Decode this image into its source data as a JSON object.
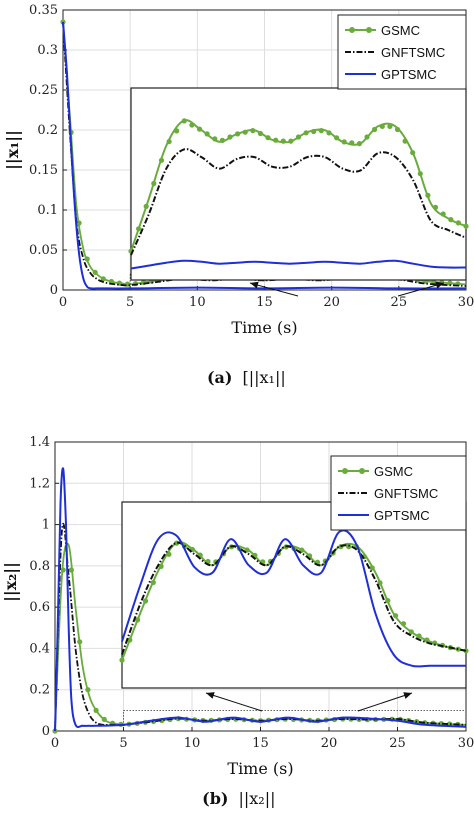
{
  "chart_data": [
    {
      "type": "line",
      "panel": "a",
      "caption_label": "(a)",
      "caption_text": "[||x₁||",
      "xlabel": "Time (s)",
      "ylabel": "||x₁||",
      "xlim": [
        0,
        30
      ],
      "ylim": [
        0,
        0.35
      ],
      "xticks": [
        0,
        5,
        10,
        15,
        20,
        25,
        30
      ],
      "yticks": [
        0,
        0.05,
        0.1,
        0.15,
        0.2,
        0.25,
        0.3,
        0.35
      ],
      "grid": true,
      "legend_position": "top-right",
      "series": [
        {
          "name": "GSMC",
          "color": "#6aac3c",
          "style": "solid-marker",
          "x": [
            0,
            0.5,
            1,
            1.5,
            2,
            2.5,
            3,
            3.5,
            4,
            4.5,
            5,
            7,
            9,
            11,
            13,
            15,
            17,
            19,
            21,
            23,
            25,
            27,
            30
          ],
          "y": [
            0.335,
            0.22,
            0.105,
            0.052,
            0.03,
            0.02,
            0.014,
            0.011,
            0.009,
            0.008,
            0.007,
            0.012,
            0.017,
            0.015,
            0.017,
            0.014,
            0.017,
            0.014,
            0.017,
            0.016,
            0.016,
            0.011,
            0.007
          ]
        },
        {
          "name": "GNFTSMC",
          "color": "#111111",
          "style": "dash-dot",
          "x": [
            0,
            0.5,
            1,
            1.5,
            2,
            2.5,
            3,
            3.5,
            4,
            4.5,
            5,
            7,
            9,
            11,
            13,
            15,
            17,
            19,
            21,
            23,
            25,
            27,
            30
          ],
          "y": [
            0.335,
            0.2,
            0.085,
            0.04,
            0.022,
            0.014,
            0.01,
            0.008,
            0.007,
            0.006,
            0.006,
            0.01,
            0.014,
            0.012,
            0.014,
            0.012,
            0.014,
            0.012,
            0.014,
            0.013,
            0.013,
            0.008,
            0.005
          ]
        },
        {
          "name": "GPTSMC",
          "color": "#1f2fd6",
          "style": "solid",
          "x": [
            0,
            0.3,
            0.6,
            0.9,
            1.2,
            1.5,
            1.8,
            2.1,
            2.5,
            3,
            5,
            10,
            15,
            20,
            25,
            30
          ],
          "y": [
            0.335,
            0.27,
            0.18,
            0.1,
            0.045,
            0.015,
            0.004,
            0.002,
            0.002,
            0.002,
            0.002,
            0.003,
            0.002,
            0.003,
            0.002,
            0.002
          ]
        }
      ],
      "inset": {
        "source_xlim": [
          5,
          30
        ],
        "source_ylim": [
          0,
          0.02
        ],
        "series": [
          {
            "name": "GSMC",
            "y": [
              0.15,
              0.42,
              0.7,
              0.83,
              0.78,
              0.72,
              0.76,
              0.78,
              0.73,
              0.72,
              0.77,
              0.78,
              0.72,
              0.71,
              0.8,
              0.8,
              0.66,
              0.4,
              0.32,
              0.28
            ]
          },
          {
            "name": "GNFTSMC",
            "y": [
              0.13,
              0.34,
              0.58,
              0.68,
              0.64,
              0.58,
              0.63,
              0.64,
              0.59,
              0.59,
              0.64,
              0.64,
              0.58,
              0.57,
              0.66,
              0.64,
              0.52,
              0.31,
              0.26,
              0.22
            ]
          },
          {
            "name": "GPTSMC",
            "y": [
              0.06,
              0.075,
              0.09,
              0.1,
              0.095,
              0.085,
              0.09,
              0.095,
              0.09,
              0.085,
              0.09,
              0.095,
              0.09,
              0.085,
              0.095,
              0.1,
              0.085,
              0.07,
              0.065,
              0.065
            ]
          }
        ]
      }
    },
    {
      "type": "line",
      "panel": "b",
      "caption_label": "(b)",
      "caption_text": "||x₂||",
      "xlabel": "Time (s)",
      "ylabel": "||x₂||",
      "xlim": [
        0,
        30
      ],
      "ylim": [
        0,
        1.4
      ],
      "xticks": [
        0,
        5,
        10,
        15,
        20,
        25,
        30
      ],
      "yticks": [
        0,
        0.2,
        0.4,
        0.6,
        0.8,
        1,
        1.2,
        1.4
      ],
      "grid": true,
      "legend_position": "top-right",
      "series": [
        {
          "name": "GSMC",
          "color": "#6aac3c",
          "style": "solid-marker",
          "x": [
            0,
            0.5,
            1,
            1.5,
            2,
            2.5,
            3,
            3.5,
            4,
            4.5,
            5,
            7,
            9,
            11,
            13,
            15,
            17,
            19,
            21,
            23,
            25,
            27,
            30
          ],
          "y": [
            0.0,
            0.75,
            0.9,
            0.6,
            0.32,
            0.17,
            0.1,
            0.06,
            0.04,
            0.035,
            0.03,
            0.045,
            0.06,
            0.05,
            0.058,
            0.05,
            0.058,
            0.05,
            0.058,
            0.055,
            0.058,
            0.04,
            0.03
          ]
        },
        {
          "name": "GNFTSMC",
          "color": "#111111",
          "style": "dash-dot",
          "x": [
            0,
            0.5,
            1,
            1.5,
            2,
            2.5,
            3,
            3.5,
            4,
            4.5,
            5,
            7,
            9,
            11,
            13,
            15,
            17,
            19,
            21,
            23,
            25,
            27,
            30
          ],
          "y": [
            0.0,
            0.97,
            0.75,
            0.4,
            0.18,
            0.08,
            0.04,
            0.03,
            0.03,
            0.03,
            0.03,
            0.045,
            0.06,
            0.05,
            0.058,
            0.05,
            0.058,
            0.05,
            0.058,
            0.055,
            0.058,
            0.04,
            0.03
          ]
        },
        {
          "name": "GPTSMC",
          "color": "#1f2fd6",
          "style": "solid",
          "x": [
            0,
            0.2,
            0.4,
            0.6,
            0.8,
            1.0,
            1.2,
            1.5,
            2,
            2.5,
            3,
            5,
            7,
            9,
            11,
            13,
            15,
            17,
            19,
            21,
            23,
            25,
            27,
            30
          ],
          "y": [
            0.0,
            0.5,
            1.1,
            1.27,
            1.0,
            0.5,
            0.15,
            0.03,
            0.025,
            0.025,
            0.025,
            0.03,
            0.05,
            0.065,
            0.045,
            0.065,
            0.045,
            0.065,
            0.045,
            0.065,
            0.06,
            0.05,
            0.03,
            0.02
          ]
        }
      ],
      "inset": {
        "source_xlim": [
          5,
          30
        ],
        "source_ylim": [
          0,
          0.1
        ],
        "series": [
          {
            "name": "GSMC",
            "y": [
              0.15,
              0.4,
              0.63,
              0.78,
              0.74,
              0.66,
              0.76,
              0.74,
              0.66,
              0.76,
              0.74,
              0.66,
              0.76,
              0.76,
              0.62,
              0.4,
              0.3,
              0.25,
              0.22,
              0.2
            ]
          },
          {
            "name": "GNFTSMC",
            "y": [
              0.18,
              0.45,
              0.66,
              0.78,
              0.72,
              0.66,
              0.76,
              0.72,
              0.66,
              0.76,
              0.72,
              0.66,
              0.76,
              0.74,
              0.58,
              0.36,
              0.28,
              0.24,
              0.22,
              0.2
            ]
          },
          {
            "name": "GPTSMC",
            "y": [
              0.25,
              0.55,
              0.8,
              0.82,
              0.65,
              0.62,
              0.8,
              0.66,
              0.62,
              0.8,
              0.66,
              0.62,
              0.84,
              0.76,
              0.4,
              0.18,
              0.12,
              0.12,
              0.12,
              0.12
            ]
          }
        ]
      }
    }
  ]
}
